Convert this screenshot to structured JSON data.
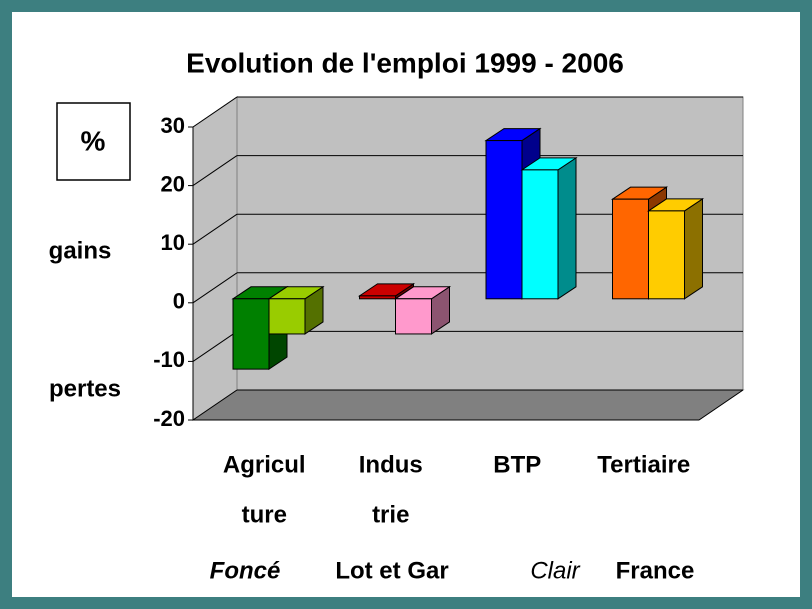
{
  "chart_data": {
    "type": "bar3d",
    "title": "Evolution de l'emploi 1999 - 2006",
    "unit_label": "%",
    "gain_label": "gains",
    "loss_label": "pertes",
    "categories": [
      [
        "Agricul",
        "ture"
      ],
      [
        "Indus",
        "trie"
      ],
      [
        "BTP"
      ],
      [
        "Tertiaire"
      ]
    ],
    "series": [
      {
        "name": "Lot et Gar",
        "shade": "Foncé",
        "colors": [
          "#008000",
          "#cc0000",
          "#0000ff",
          "#ff6600"
        ],
        "values": [
          -12,
          0.5,
          27,
          17
        ]
      },
      {
        "name": "France",
        "shade": "Clair",
        "colors": [
          "#99cc00",
          "#ff99cc",
          "#00ffff",
          "#ffcc00"
        ],
        "values": [
          -6,
          -6,
          22,
          15
        ]
      }
    ],
    "ylim": [
      -20,
      30
    ],
    "yticks": [
      -20,
      -10,
      0,
      10,
      20,
      30
    ],
    "grid": true
  }
}
